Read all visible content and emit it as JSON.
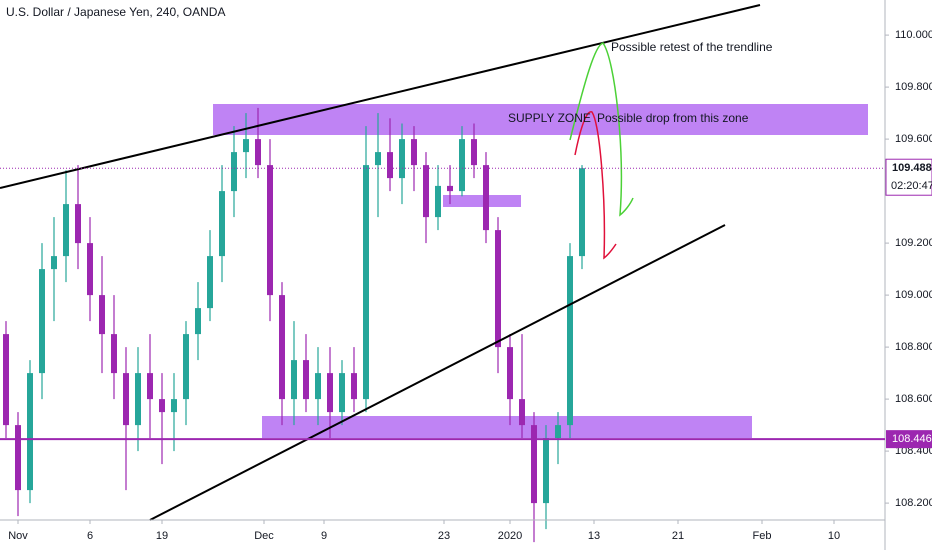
{
  "chart_data": {
    "type": "candlestick",
    "title": "U.S. Dollar / Japanese Yen, 240, OANDA",
    "x": [
      -1,
      0,
      1,
      2,
      3,
      4,
      5,
      6,
      7,
      8,
      9,
      10,
      11,
      12,
      13,
      14,
      15,
      16,
      17,
      18,
      19,
      20,
      21,
      22,
      23,
      24,
      25,
      26,
      27,
      28,
      29,
      30,
      31,
      32,
      33,
      34,
      35,
      36,
      37,
      38,
      39,
      40,
      41,
      42,
      43,
      44,
      45,
      46,
      47
    ],
    "open": [
      108.85,
      108.5,
      108.25,
      108.7,
      109.1,
      109.15,
      109.35,
      109.2,
      109.0,
      108.85,
      108.7,
      108.5,
      108.7,
      108.6,
      108.55,
      108.6,
      108.85,
      108.95,
      109.15,
      109.4,
      109.55,
      109.6,
      109.5,
      109.0,
      108.6,
      108.75,
      108.6,
      108.7,
      108.55,
      108.7,
      108.6,
      109.5,
      109.55,
      109.45,
      109.6,
      109.5,
      109.3,
      109.42,
      109.4,
      109.6,
      109.5,
      109.25,
      108.8,
      108.6,
      108.5,
      108.2,
      108.45,
      108.5,
      109.15
    ],
    "high": [
      108.9,
      108.55,
      108.75,
      109.2,
      109.3,
      109.48,
      109.5,
      109.3,
      109.15,
      109.0,
      108.8,
      108.8,
      108.85,
      108.7,
      108.7,
      108.9,
      109.05,
      109.25,
      109.5,
      109.65,
      109.7,
      109.72,
      109.6,
      109.05,
      108.9,
      108.85,
      108.8,
      108.8,
      108.75,
      108.8,
      109.65,
      109.7,
      109.68,
      109.66,
      109.65,
      109.55,
      109.5,
      109.5,
      109.65,
      109.66,
      109.55,
      109.3,
      108.85,
      108.85,
      108.55,
      108.5,
      108.55,
      109.2,
      109.5
    ],
    "low": [
      108.45,
      108.15,
      108.2,
      108.6,
      108.9,
      109.05,
      109.1,
      108.9,
      108.7,
      108.6,
      108.25,
      108.4,
      108.45,
      108.35,
      108.4,
      108.5,
      108.75,
      108.9,
      109.05,
      109.3,
      109.45,
      109.45,
      108.9,
      108.5,
      108.5,
      108.55,
      108.5,
      108.45,
      108.5,
      108.55,
      108.55,
      109.3,
      109.4,
      109.35,
      109.4,
      109.2,
      109.25,
      109.35,
      109.38,
      109.45,
      109.2,
      108.7,
      108.5,
      108.45,
      108.05,
      108.1,
      108.35,
      108.45,
      109.1
    ],
    "close": [
      108.5,
      108.25,
      108.7,
      109.1,
      109.15,
      109.35,
      109.2,
      109.0,
      108.85,
      108.7,
      108.5,
      108.7,
      108.6,
      108.55,
      108.6,
      108.85,
      108.95,
      109.15,
      109.4,
      109.55,
      109.6,
      109.5,
      109.0,
      108.6,
      108.75,
      108.6,
      108.7,
      108.55,
      108.7,
      108.6,
      109.5,
      109.55,
      109.45,
      109.6,
      109.5,
      109.3,
      109.42,
      109.4,
      109.6,
      109.5,
      109.25,
      108.8,
      108.6,
      108.5,
      108.2,
      108.45,
      108.5,
      109.15,
      109.488
    ],
    "up_color": "#26a69a",
    "down_color": "#9c27b0",
    "xlim": [
      -1.5,
      72.25
    ],
    "xticks": [
      {
        "value": 0,
        "label": "Nov"
      },
      6,
      {
        "value": 12,
        "label": "19"
      },
      {
        "value": 20.5,
        "label": "Dec"
      },
      {
        "value": 25.5,
        "label": "9"
      },
      {
        "value": 35.5,
        "label": "23"
      },
      {
        "value": 41,
        "label": "2020"
      },
      {
        "value": 48,
        "label": "13"
      },
      {
        "value": 55,
        "label": "21"
      },
      {
        "value": 62,
        "label": "Feb"
      },
      {
        "value": 68,
        "label": "10"
      }
    ],
    "ylim": [
      108.135,
      110.135
    ],
    "yticks": [
      {
        "value": 110,
        "label": "110.000"
      },
      {
        "value": 109.8,
        "label": "109.800"
      },
      {
        "value": 109.6,
        "label": "109.600"
      },
      {
        "value": 109.2,
        "label": "109.200"
      },
      {
        "value": 109,
        "label": "109.000"
      },
      {
        "value": 108.8,
        "label": "108.800"
      },
      {
        "value": 108.6,
        "label": "108.600"
      },
      {
        "value": 108.4,
        "label": "108.400"
      },
      {
        "value": 108.2,
        "label": "108.200"
      }
    ],
    "last_price": 109.488,
    "countdown": "02:20:47",
    "level": 108.446,
    "annotations": [
      "SUPPLY ZONE",
      "Possible drop from this zone",
      "Possible retest of the trendline"
    ]
  }
}
